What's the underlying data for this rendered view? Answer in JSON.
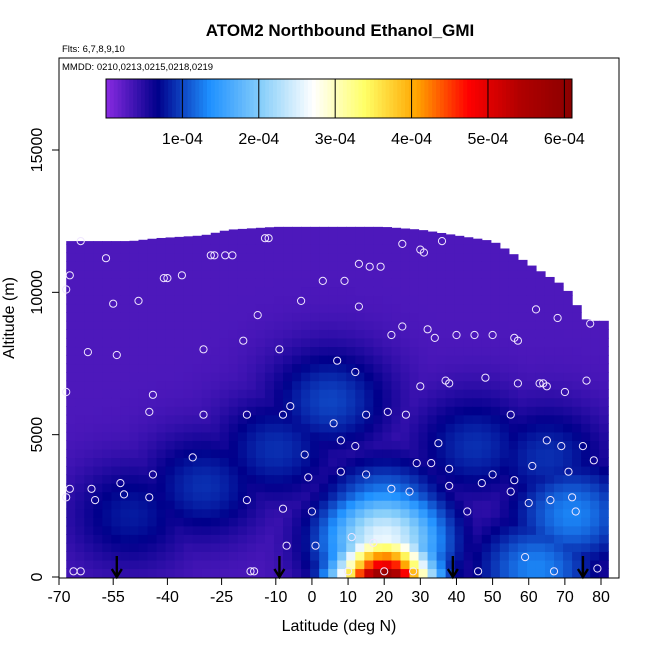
{
  "chart_data": {
    "type": "heatmap",
    "title": "ATOM2 Northbound Ethanol_GMI",
    "subtitle_lines": [
      "Flts: 6,7,8,9,10",
      "MMDD: 0210,0213,0215,0218,0219"
    ],
    "xlabel": "Latitude (deg N)",
    "ylabel": "Altitude (m)",
    "xlim": [
      -70,
      85
    ],
    "ylim": [
      0,
      17500
    ],
    "x_ticks": [
      -70,
      -55,
      -40,
      -25,
      -10,
      0,
      10,
      20,
      30,
      40,
      50,
      60,
      70,
      80
    ],
    "x_tick_labels": [
      "-70",
      "-55",
      "-40",
      "-25",
      "-10",
      "0",
      "10",
      "20",
      "30",
      "40",
      "50",
      "60",
      "70",
      "80"
    ],
    "y_ticks": [
      0,
      5000,
      10000,
      15000
    ],
    "y_tick_labels": [
      "0",
      "5000",
      "10000",
      "15000"
    ],
    "colorbar": {
      "range": [
        0,
        0.00061
      ],
      "tick_values": [
        0.0001,
        0.0002,
        0.0003,
        0.0004,
        0.0005,
        0.0006
      ],
      "tick_labels": [
        "1e-04",
        "2e-04",
        "3e-04",
        "4e-04",
        "5e-04",
        "6e-04"
      ],
      "stops": [
        "#8a2be2",
        "#00008b",
        "#1e90ff",
        "#87cefa",
        "#ffffff",
        "#ffff66",
        "#ffa500",
        "#ff0000",
        "#b00000",
        "#8b0000"
      ]
    },
    "field": {
      "background_value": 3e-05,
      "ceiling": [
        [
          -57,
          11800
        ],
        [
          -50,
          11800
        ],
        [
          -43,
          11900
        ],
        [
          -30,
          12000
        ],
        [
          -23,
          12200
        ],
        [
          -10,
          12300
        ],
        [
          0,
          12300
        ],
        [
          10,
          12300
        ],
        [
          20,
          12300
        ],
        [
          30,
          12200
        ],
        [
          40,
          12000
        ],
        [
          50,
          11800
        ],
        [
          60,
          11000
        ],
        [
          70,
          10200
        ],
        [
          76,
          9000
        ]
      ],
      "blobs": [
        {
          "lat": -50,
          "alt": 2200,
          "value": 8e-05
        },
        {
          "lat": -30,
          "alt": 3200,
          "value": 9e-05
        },
        {
          "lat": -10,
          "alt": 4500,
          "value": 9e-05
        },
        {
          "lat": 5,
          "alt": 6200,
          "value": 0.0001
        },
        {
          "lat": 45,
          "alt": 4600,
          "value": 9e-05
        },
        {
          "lat": 65,
          "alt": 4200,
          "value": 9e-05
        },
        {
          "lat": 72,
          "alt": 2200,
          "value": 0.00013
        },
        {
          "lat": 20,
          "alt": 2200,
          "value": 0.00015
        },
        {
          "lat": 20,
          "alt": 1300,
          "value": 0.00026
        },
        {
          "lat": 20,
          "alt": 700,
          "value": 0.00042
        },
        {
          "lat": 20,
          "alt": 150,
          "value": 0.00058
        },
        {
          "lat": 62,
          "alt": 300,
          "value": 0.00013
        }
      ]
    },
    "flight_points": [
      [
        -68,
        10100
      ],
      [
        -67,
        10600
      ],
      [
        -64,
        11800
      ],
      [
        -57,
        11200
      ],
      [
        -68,
        6500
      ],
      [
        -67,
        3100
      ],
      [
        -68,
        2800
      ],
      [
        -66,
        200
      ],
      [
        -64,
        200
      ],
      [
        -62,
        7900
      ],
      [
        -61,
        3100
      ],
      [
        -60,
        2700
      ],
      [
        -55,
        9600
      ],
      [
        -54,
        7800
      ],
      [
        -53,
        3300
      ],
      [
        -52,
        2900
      ],
      [
        -48,
        9700
      ],
      [
        -45,
        5800
      ],
      [
        -44,
        6400
      ],
      [
        -44,
        3600
      ],
      [
        -45,
        2800
      ],
      [
        -41,
        10500
      ],
      [
        -40,
        10500
      ],
      [
        -36,
        10600
      ],
      [
        -33,
        4200
      ],
      [
        -30,
        8000
      ],
      [
        -30,
        5700
      ],
      [
        -28,
        11300
      ],
      [
        -27,
        11300
      ],
      [
        -24,
        11300
      ],
      [
        -22,
        11300
      ],
      [
        -19,
        8300
      ],
      [
        -18,
        5700
      ],
      [
        -18,
        2700
      ],
      [
        -17,
        200
      ],
      [
        -16,
        200
      ],
      [
        -15,
        9200
      ],
      [
        -13,
        11900
      ],
      [
        -12,
        11900
      ],
      [
        -9,
        8000
      ],
      [
        -8,
        5700
      ],
      [
        -8,
        2400
      ],
      [
        -7,
        1100
      ],
      [
        -6,
        6000
      ],
      [
        -3,
        9700
      ],
      [
        -2,
        4300
      ],
      [
        -1,
        3500
      ],
      [
        0,
        2300
      ],
      [
        1,
        1100
      ],
      [
        3,
        10400
      ],
      [
        6,
        5400
      ],
      [
        7,
        7600
      ],
      [
        8,
        4800
      ],
      [
        8,
        3700
      ],
      [
        9,
        10400
      ],
      [
        10,
        200
      ],
      [
        11,
        1400
      ],
      [
        12,
        4600
      ],
      [
        12,
        7200
      ],
      [
        13,
        9500
      ],
      [
        13,
        11000
      ],
      [
        15,
        5700
      ],
      [
        15,
        3600
      ],
      [
        16,
        10900
      ],
      [
        17,
        1200
      ],
      [
        19,
        10900
      ],
      [
        20,
        200
      ],
      [
        21,
        5800
      ],
      [
        22,
        8500
      ],
      [
        22,
        3100
      ],
      [
        25,
        11700
      ],
      [
        25,
        8800
      ],
      [
        26,
        5700
      ],
      [
        27,
        3000
      ],
      [
        28,
        200
      ],
      [
        29,
        4000
      ],
      [
        30,
        6700
      ],
      [
        30,
        11500
      ],
      [
        31,
        11400
      ],
      [
        32,
        8700
      ],
      [
        33,
        4000
      ],
      [
        34,
        8400
      ],
      [
        35,
        4700
      ],
      [
        36,
        11800
      ],
      [
        37,
        6900
      ],
      [
        38,
        6800
      ],
      [
        38,
        3800
      ],
      [
        38,
        3200
      ],
      [
        40,
        8500
      ],
      [
        43,
        2300
      ],
      [
        45,
        8500
      ],
      [
        46,
        200
      ],
      [
        47,
        3300
      ],
      [
        48,
        7000
      ],
      [
        50,
        3600
      ],
      [
        50,
        8500
      ],
      [
        55,
        5700
      ],
      [
        55,
        3000
      ],
      [
        56,
        8400
      ],
      [
        56,
        3400
      ],
      [
        57,
        8300
      ],
      [
        57,
        6800
      ],
      [
        59,
        700
      ],
      [
        60,
        2600
      ],
      [
        61,
        3900
      ],
      [
        62,
        9400
      ],
      [
        63,
        6800
      ],
      [
        64,
        6800
      ],
      [
        65,
        4800
      ],
      [
        65,
        6700
      ],
      [
        66,
        2700
      ],
      [
        67,
        200
      ],
      [
        68,
        9100
      ],
      [
        69,
        4600
      ],
      [
        70,
        6500
      ],
      [
        71,
        3700
      ],
      [
        72,
        2800
      ],
      [
        73,
        2300
      ],
      [
        75,
        4600
      ],
      [
        76,
        6900
      ],
      [
        77,
        8900
      ],
      [
        78,
        4100
      ],
      [
        79,
        300
      ]
    ],
    "arrows_lat": [
      -54,
      -9,
      39,
      75
    ],
    "grid": false,
    "legend": "colorbar top"
  }
}
